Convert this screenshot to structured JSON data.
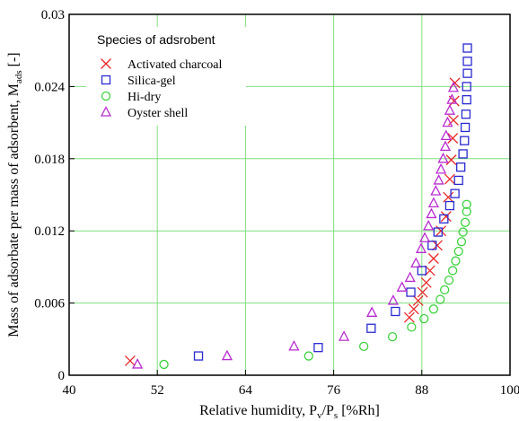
{
  "chart_data": {
    "type": "scatter",
    "xlabel": "Relative humidity, P",
    "xlabel_sub1": "v",
    "xlabel_mid": "/P",
    "xlabel_sub2": "s",
    "xlabel_unit": " [%Rh]",
    "ylabel": "Mass of adsorbate per mass of adsorbent, M",
    "ylabel_sub": "ads",
    "ylabel_unit": " [-]",
    "xlim": [
      40,
      100
    ],
    "ylim": [
      0,
      0.03
    ],
    "x_ticks": [
      "40",
      "52",
      "64",
      "76",
      "88",
      "100"
    ],
    "y_ticks": [
      "0",
      "0.006",
      "0.012",
      "0.018",
      "0.024",
      "0.03"
    ],
    "grid": true,
    "grid_color": "#7fe07f",
    "legend": {
      "title": "Species of adsrobent",
      "placement": "top-left"
    },
    "series": [
      {
        "name": "Activated charcoal",
        "marker": "x",
        "color": "#e8282a",
        "points": [
          [
            48.3,
            0.0012
          ],
          [
            86.3,
            0.0048
          ],
          [
            86.9,
            0.0055
          ],
          [
            87.5,
            0.0062
          ],
          [
            88.1,
            0.0069
          ],
          [
            88.6,
            0.0077
          ],
          [
            89.1,
            0.0087
          ],
          [
            89.6,
            0.0097
          ],
          [
            90.1,
            0.0108
          ],
          [
            90.6,
            0.012
          ],
          [
            91.3,
            0.0132
          ],
          [
            91.6,
            0.0148
          ],
          [
            91.8,
            0.0163
          ],
          [
            92.0,
            0.0179
          ],
          [
            92.2,
            0.0197
          ],
          [
            92.3,
            0.0212
          ],
          [
            92.4,
            0.0228
          ],
          [
            92.5,
            0.0243
          ]
        ]
      },
      {
        "name": "Silica-gel",
        "marker": "square",
        "color": "#2a2ad0",
        "points": [
          [
            57.6,
            0.0016
          ],
          [
            73.9,
            0.0023
          ],
          [
            81.1,
            0.0039
          ],
          [
            84.4,
            0.0053
          ],
          [
            86.5,
            0.0069
          ],
          [
            88.0,
            0.0087
          ],
          [
            89.4,
            0.0108
          ],
          [
            90.2,
            0.0119
          ],
          [
            91.0,
            0.013
          ],
          [
            91.8,
            0.0141
          ],
          [
            92.5,
            0.0151
          ],
          [
            93.0,
            0.0162
          ],
          [
            93.3,
            0.0173
          ],
          [
            93.6,
            0.0184
          ],
          [
            93.8,
            0.0195
          ],
          [
            93.9,
            0.0206
          ],
          [
            94.0,
            0.0217
          ],
          [
            94.1,
            0.0229
          ],
          [
            94.1,
            0.024
          ],
          [
            94.2,
            0.0251
          ],
          [
            94.2,
            0.0261
          ],
          [
            94.2,
            0.0272
          ]
        ]
      },
      {
        "name": "Hi-dry",
        "marker": "circle",
        "color": "#3fd23f",
        "points": [
          [
            52.9,
            0.0009
          ],
          [
            72.6,
            0.0016
          ],
          [
            80.1,
            0.0024
          ],
          [
            84.0,
            0.0032
          ],
          [
            86.6,
            0.004
          ],
          [
            88.3,
            0.0047
          ],
          [
            89.6,
            0.0055
          ],
          [
            90.5,
            0.0063
          ],
          [
            91.1,
            0.0071
          ],
          [
            91.7,
            0.0079
          ],
          [
            92.2,
            0.0087
          ],
          [
            92.6,
            0.0095
          ],
          [
            93.0,
            0.0103
          ],
          [
            93.4,
            0.0111
          ],
          [
            93.6,
            0.0119
          ],
          [
            93.9,
            0.0127
          ],
          [
            94.1,
            0.0136
          ],
          [
            94.1,
            0.0142
          ]
        ]
      },
      {
        "name": "Oyster shell",
        "marker": "triangle",
        "color": "#b82bd0",
        "points": [
          [
            49.3,
            0.0009
          ],
          [
            61.5,
            0.0016
          ],
          [
            70.6,
            0.0024
          ],
          [
            77.4,
            0.0032
          ],
          [
            81.2,
            0.0052
          ],
          [
            84.1,
            0.0062
          ],
          [
            85.3,
            0.0073
          ],
          [
            86.4,
            0.0081
          ],
          [
            87.2,
            0.0093
          ],
          [
            87.9,
            0.0105
          ],
          [
            88.4,
            0.0114
          ],
          [
            88.9,
            0.0124
          ],
          [
            89.3,
            0.0134
          ],
          [
            89.6,
            0.0143
          ],
          [
            89.9,
            0.0153
          ],
          [
            90.3,
            0.0162
          ],
          [
            90.6,
            0.0171
          ],
          [
            90.9,
            0.018
          ],
          [
            91.2,
            0.019
          ],
          [
            91.3,
            0.0199
          ],
          [
            91.5,
            0.021
          ],
          [
            91.8,
            0.022
          ],
          [
            92.1,
            0.0229
          ],
          [
            92.3,
            0.0239
          ]
        ]
      }
    ]
  }
}
